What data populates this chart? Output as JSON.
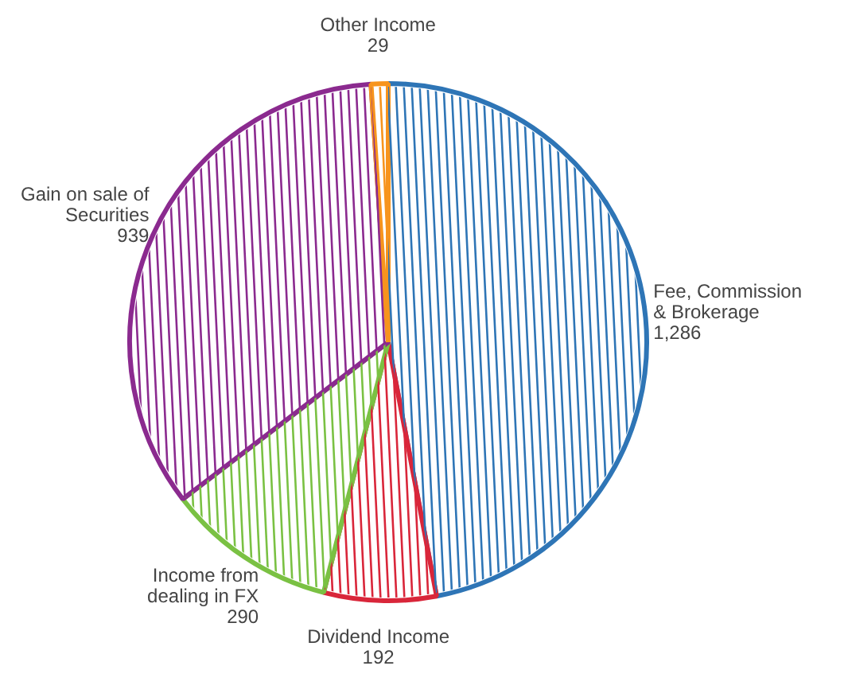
{
  "chart_data": {
    "type": "pie",
    "categories": [
      "Fee, Commission & Brokerage",
      "Dividend Income",
      "Income from dealing in FX",
      "Gain on sale of Securities",
      "Other Income"
    ],
    "values": [
      1286,
      192,
      290,
      939,
      29
    ],
    "colors": [
      "#2e75b6",
      "#d9263a",
      "#7ac143",
      "#8b2a8f",
      "#f7941d"
    ],
    "value_labels": [
      "1,286",
      "192",
      "290",
      "939",
      "29"
    ],
    "legend": false
  }
}
